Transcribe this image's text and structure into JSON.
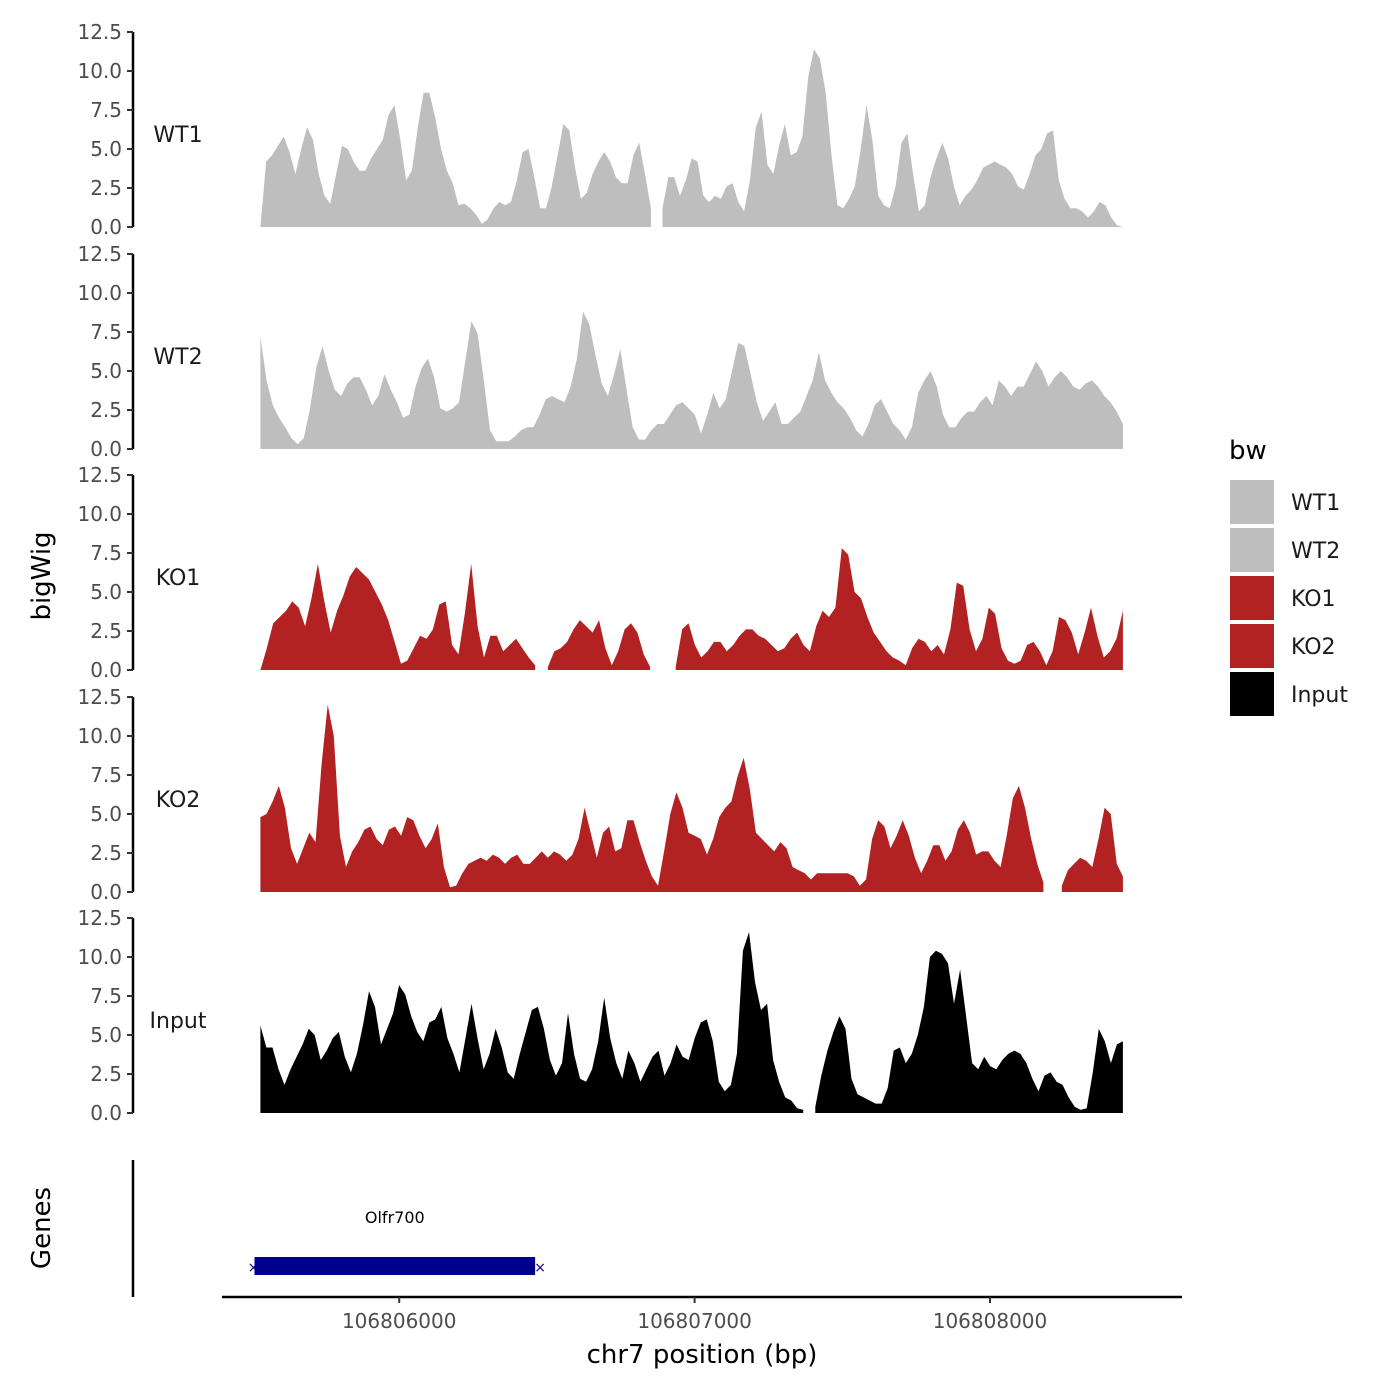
{
  "chart_data": {
    "type": "area",
    "ylabel": "bigWig",
    "xlabel": "chr7 position (bp)",
    "xlim": [
      106805400,
      106808650
    ],
    "ylim": [
      0,
      12.5
    ],
    "y_ticks": [
      "0.0",
      "2.5",
      "5.0",
      "7.5",
      "10.0",
      "12.5"
    ],
    "x_ticks": [
      {
        "value": 106806000,
        "label": "106806000"
      },
      {
        "value": 106807000,
        "label": "106807000"
      },
      {
        "value": 106808000,
        "label": "106808000"
      }
    ],
    "legend": {
      "title": "bw",
      "position": "right",
      "entries": [
        {
          "label": "WT1",
          "color": "#bebebe"
        },
        {
          "label": "WT2",
          "color": "#bebebe"
        },
        {
          "label": "KO1",
          "color": "#b22222"
        },
        {
          "label": "KO2",
          "color": "#b22222"
        },
        {
          "label": "Input",
          "color": "#000000"
        }
      ]
    },
    "tracks_x": [
      106805530,
      106808450
    ],
    "series": [
      {
        "name": "WT1",
        "color": "#bebebe",
        "values": [
          0.0,
          4.2,
          4.6,
          5.2,
          5.8,
          4.8,
          3.4,
          5.0,
          6.4,
          5.6,
          3.4,
          2.0,
          1.5,
          3.4,
          5.2,
          5.0,
          4.2,
          3.6,
          3.6,
          4.4,
          5.0,
          5.6,
          7.2,
          7.8,
          5.6,
          3.0,
          3.6,
          6.4,
          8.6,
          8.6,
          7.0,
          5.0,
          3.6,
          2.8,
          1.4,
          1.5,
          1.2,
          0.8,
          0.2,
          0.5,
          1.2,
          1.6,
          1.4,
          1.6,
          3.0,
          4.8,
          5.0,
          3.2,
          1.2,
          1.2,
          2.6,
          4.6,
          6.6,
          6.2,
          3.8,
          1.8,
          2.2,
          3.4,
          4.2,
          4.8,
          4.2,
          3.2,
          2.8,
          2.8,
          4.6,
          5.4,
          3.4,
          1.2,
          null,
          1.2,
          3.2,
          3.2,
          2.0,
          3.0,
          4.4,
          4.2,
          2.0,
          1.6,
          2.0,
          1.8,
          2.6,
          2.8,
          1.6,
          1.0,
          3.0,
          6.4,
          7.4,
          4.0,
          3.4,
          5.2,
          6.6,
          4.6,
          4.8,
          5.8,
          9.6,
          11.4,
          10.8,
          8.6,
          4.6,
          1.4,
          1.2,
          1.8,
          2.6,
          5.0,
          7.8,
          5.6,
          2.0,
          1.4,
          1.2,
          2.6,
          5.4,
          6.0,
          3.4,
          1.0,
          1.4,
          3.2,
          4.4,
          5.4,
          4.4,
          2.6,
          1.4,
          2.0,
          2.4,
          3.0,
          3.8,
          4.0,
          4.2,
          4.0,
          3.8,
          3.4,
          2.6,
          2.4,
          3.4,
          4.6,
          5.0,
          6.0,
          6.2,
          3.0,
          1.8,
          1.2,
          1.2,
          1.0,
          0.6,
          1.0,
          1.6,
          1.4,
          0.6,
          0.1,
          0.0
        ]
      },
      {
        "name": "WT2",
        "color": "#bebebe",
        "values": [
          7.2,
          4.4,
          2.8,
          2.0,
          1.4,
          0.7,
          0.3,
          0.7,
          2.6,
          5.2,
          6.6,
          5.0,
          3.8,
          3.4,
          4.2,
          4.6,
          4.6,
          3.8,
          2.8,
          3.4,
          4.8,
          3.8,
          3.0,
          2.0,
          2.2,
          4.0,
          5.2,
          5.8,
          4.6,
          2.6,
          2.4,
          2.6,
          3.0,
          5.6,
          8.2,
          7.4,
          4.4,
          1.2,
          0.5,
          0.5,
          0.5,
          0.8,
          1.2,
          1.4,
          1.4,
          2.2,
          3.2,
          3.4,
          3.2,
          3.0,
          4.0,
          5.8,
          8.8,
          8.0,
          6.0,
          4.2,
          3.4,
          4.8,
          6.4,
          3.8,
          1.4,
          0.6,
          0.6,
          1.2,
          1.6,
          1.6,
          2.2,
          2.8,
          3.0,
          2.6,
          2.2,
          1.0,
          2.2,
          3.6,
          2.6,
          3.2,
          5.0,
          6.8,
          6.6,
          4.8,
          3.0,
          1.8,
          2.4,
          3.0,
          1.6,
          1.6,
          2.0,
          2.4,
          3.4,
          4.4,
          6.2,
          4.4,
          3.6,
          3.0,
          2.6,
          2.0,
          1.2,
          0.8,
          1.6,
          2.8,
          3.2,
          2.4,
          1.6,
          1.2,
          0.6,
          1.4,
          3.6,
          4.4,
          5.0,
          4.0,
          2.2,
          1.4,
          1.4,
          2.0,
          2.4,
          2.4,
          3.0,
          3.4,
          2.8,
          4.4,
          4.0,
          3.4,
          4.0,
          4.0,
          4.8,
          5.6,
          5.0,
          4.0,
          4.6,
          5.0,
          4.6,
          4.0,
          3.8,
          4.2,
          4.4,
          4.0,
          3.4,
          3.0,
          2.4,
          1.6
        ]
      },
      {
        "name": "KO1",
        "color": "#b22222",
        "values": [
          0.0,
          1.4,
          3.0,
          3.4,
          3.8,
          4.4,
          4.0,
          2.8,
          4.6,
          6.8,
          4.4,
          2.4,
          3.8,
          4.8,
          6.0,
          6.6,
          6.2,
          5.8,
          5.0,
          4.2,
          3.2,
          1.8,
          0.4,
          0.6,
          1.4,
          2.2,
          2.0,
          2.6,
          4.2,
          4.4,
          1.6,
          1.0,
          3.6,
          6.8,
          2.8,
          0.8,
          2.2,
          2.2,
          1.2,
          1.6,
          2.0,
          1.4,
          0.8,
          0.3,
          null,
          0.2,
          1.2,
          1.4,
          1.8,
          2.6,
          3.2,
          2.8,
          2.4,
          3.2,
          1.4,
          0.3,
          1.2,
          2.6,
          3.0,
          2.4,
          1.0,
          0.2,
          null,
          null,
          null,
          0.2,
          2.6,
          3.0,
          1.6,
          0.8,
          1.2,
          1.8,
          1.8,
          1.2,
          1.6,
          2.2,
          2.6,
          2.6,
          2.2,
          2.0,
          1.6,
          1.2,
          1.4,
          2.0,
          2.4,
          1.6,
          1.2,
          2.8,
          3.8,
          3.4,
          4.0,
          7.8,
          7.4,
          5.0,
          4.6,
          3.4,
          2.4,
          1.8,
          1.2,
          0.8,
          0.6,
          0.3,
          1.4,
          2.0,
          1.8,
          1.2,
          1.6,
          1.0,
          2.6,
          5.6,
          5.4,
          2.6,
          1.2,
          2.0,
          4.0,
          3.6,
          1.4,
          0.6,
          0.4,
          0.6,
          1.6,
          1.8,
          1.2,
          0.3,
          1.2,
          3.4,
          3.2,
          2.4,
          1.0,
          2.4,
          4.0,
          2.2,
          0.8,
          1.2,
          2.0,
          3.8
        ]
      },
      {
        "name": "KO2",
        "color": "#b22222",
        "values": [
          4.8,
          5.0,
          5.8,
          6.8,
          5.4,
          2.8,
          1.8,
          2.8,
          3.8,
          3.2,
          8.2,
          12.0,
          10.0,
          3.6,
          1.6,
          2.6,
          3.2,
          4.0,
          4.2,
          3.4,
          3.0,
          4.0,
          4.2,
          3.6,
          4.8,
          4.6,
          3.6,
          2.8,
          3.4,
          4.4,
          1.6,
          0.3,
          0.4,
          1.2,
          1.8,
          2.0,
          2.2,
          2.0,
          2.4,
          2.2,
          1.8,
          2.2,
          2.4,
          1.8,
          1.8,
          2.2,
          2.6,
          2.2,
          2.6,
          2.4,
          2.0,
          2.4,
          3.4,
          5.4,
          3.8,
          2.2,
          3.8,
          4.2,
          2.6,
          2.8,
          4.6,
          4.6,
          3.2,
          2.0,
          1.0,
          0.4,
          2.6,
          5.0,
          6.4,
          5.4,
          3.8,
          3.6,
          3.4,
          2.4,
          3.4,
          4.8,
          5.4,
          5.8,
          7.4,
          8.6,
          6.6,
          3.8,
          3.4,
          3.0,
          2.6,
          3.2,
          2.8,
          1.6,
          1.4,
          1.2,
          0.8,
          1.2,
          1.2,
          1.2,
          1.2,
          1.2,
          1.2,
          1.0,
          0.4,
          0.8,
          3.4,
          4.6,
          4.2,
          2.8,
          3.6,
          4.6,
          3.6,
          2.2,
          1.2,
          2.0,
          3.0,
          3.0,
          2.0,
          2.6,
          4.0,
          4.6,
          3.8,
          2.4,
          2.6,
          2.6,
          2.0,
          1.6,
          3.6,
          6.0,
          6.8,
          5.4,
          3.4,
          1.8,
          0.6,
          null,
          null,
          0.4,
          1.4,
          1.8,
          2.2,
          2.0,
          1.6,
          3.4,
          5.4,
          5.0,
          1.8,
          1.0
        ]
      },
      {
        "name": "Input",
        "color": "#000000",
        "values": [
          5.6,
          4.2,
          4.2,
          2.8,
          1.8,
          2.8,
          3.6,
          4.4,
          5.4,
          5.0,
          3.4,
          4.0,
          4.8,
          5.2,
          3.6,
          2.6,
          3.8,
          5.6,
          7.8,
          6.8,
          4.4,
          5.4,
          6.4,
          8.2,
          7.6,
          6.2,
          5.2,
          4.6,
          5.8,
          6.0,
          6.8,
          4.8,
          3.8,
          2.6,
          4.8,
          7.0,
          4.8,
          2.8,
          3.8,
          5.4,
          4.2,
          2.6,
          2.2,
          3.8,
          5.2,
          6.6,
          6.8,
          5.4,
          3.4,
          2.4,
          3.2,
          6.4,
          3.8,
          2.2,
          2.0,
          2.8,
          4.6,
          7.4,
          4.8,
          3.2,
          2.2,
          4.0,
          3.2,
          2.0,
          2.8,
          3.6,
          4.0,
          2.4,
          3.2,
          4.4,
          3.6,
          3.4,
          4.8,
          5.8,
          6.0,
          4.6,
          2.0,
          1.4,
          1.8,
          3.8,
          10.4,
          11.6,
          8.4,
          6.6,
          7.0,
          3.4,
          2.0,
          1.0,
          0.8,
          0.3,
          0.2,
          null,
          0.4,
          2.4,
          4.0,
          5.2,
          6.2,
          5.4,
          2.2,
          1.2,
          1.0,
          0.8,
          0.6,
          0.6,
          1.6,
          4.0,
          4.2,
          3.2,
          3.8,
          5.0,
          6.8,
          10.0,
          10.4,
          10.2,
          9.6,
          7.0,
          9.2,
          6.2,
          3.2,
          2.8,
          3.6,
          3.0,
          2.8,
          3.4,
          3.8,
          4.0,
          3.8,
          3.2,
          2.2,
          1.4,
          2.4,
          2.6,
          2.0,
          1.8,
          1.0,
          0.4,
          0.2,
          0.3,
          2.6,
          5.4,
          4.6,
          3.2,
          4.4,
          4.6
        ]
      }
    ],
    "genes": {
      "title": "Genes",
      "items": [
        {
          "name": "Olfr700",
          "start": 106805510,
          "end": 106806460,
          "strand": "-",
          "color": "#00008b"
        }
      ]
    }
  }
}
